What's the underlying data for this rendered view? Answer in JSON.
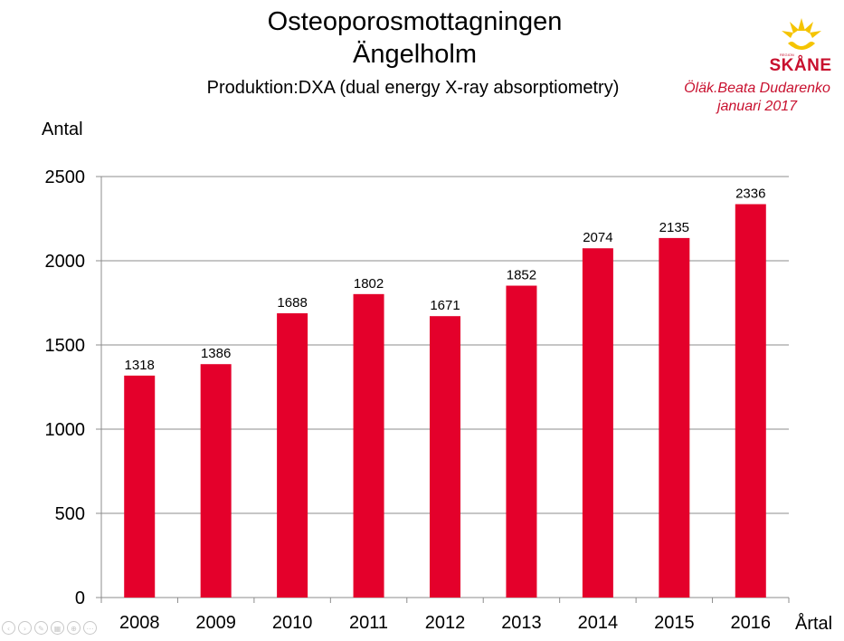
{
  "header": {
    "title_line1": "Osteoporosmottagningen",
    "title_line2": "Ängelholm",
    "subtitle": "Produktion:DXA (dual energy X-ray absorptiometry)"
  },
  "author": {
    "name": "Öläk.Beata Dudarenko",
    "date": "januari 2017"
  },
  "logo": {
    "text": "SKÅNE",
    "small_text": "REGION",
    "colors": {
      "red": "#c8102e",
      "yellow": "#f5c400"
    }
  },
  "colors": {
    "bar": "#e4002b",
    "grid": "#8c8c8c",
    "author_text": "#c8102e"
  },
  "nav_controls": [
    "prev-icon",
    "next-icon",
    "pen-icon",
    "slides-icon",
    "zoom-icon",
    "more-icon"
  ],
  "chart_data": {
    "type": "bar",
    "title": "",
    "xlabel": "Årtal",
    "ylabel": "Antal",
    "categories": [
      "2008",
      "2009",
      "2010",
      "2011",
      "2012",
      "2013",
      "2014",
      "2015",
      "2016"
    ],
    "values": [
      1318,
      1386,
      1688,
      1802,
      1671,
      1852,
      2074,
      2135,
      2336
    ],
    "ylim": [
      0,
      2500
    ],
    "yticks": [
      0,
      500,
      1000,
      1500,
      2000,
      2500
    ],
    "ytick_labels": [
      "0",
      "500",
      "1000",
      "1500",
      "2000",
      "2500"
    ],
    "data_labels": [
      "1318",
      "1386",
      "1688",
      "1802",
      "1671",
      "1852",
      "2074",
      "2135",
      "2336"
    ],
    "grid": true,
    "legend": "none"
  }
}
